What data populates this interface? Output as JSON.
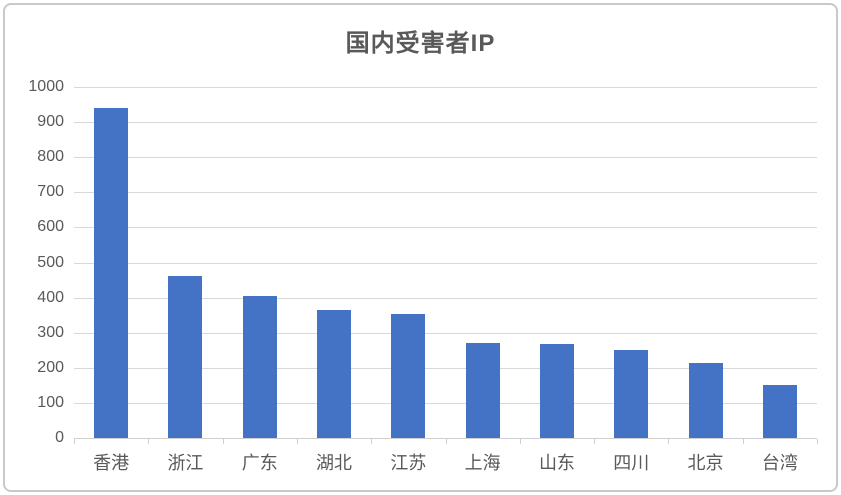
{
  "chart_data": {
    "type": "bar",
    "title": "国内受害者IP",
    "categories": [
      "香港",
      "浙江",
      "广东",
      "湖北",
      "江苏",
      "上海",
      "山东",
      "四川",
      "北京",
      "台湾"
    ],
    "values": [
      940,
      461,
      404,
      366,
      352,
      270,
      267,
      250,
      215,
      150
    ],
    "xlabel": "",
    "ylabel": "",
    "ylim": [
      0,
      1000
    ],
    "yticks": [
      0,
      100,
      200,
      300,
      400,
      500,
      600,
      700,
      800,
      900,
      1000
    ],
    "grid": true,
    "legend_position": "none",
    "colors": {
      "bar": "#4472c4",
      "gridline": "#d9d9d9",
      "axis": "#d0d0d0",
      "text": "#595959",
      "frame_border": "#c9c9c9",
      "background": "#ffffff"
    }
  }
}
